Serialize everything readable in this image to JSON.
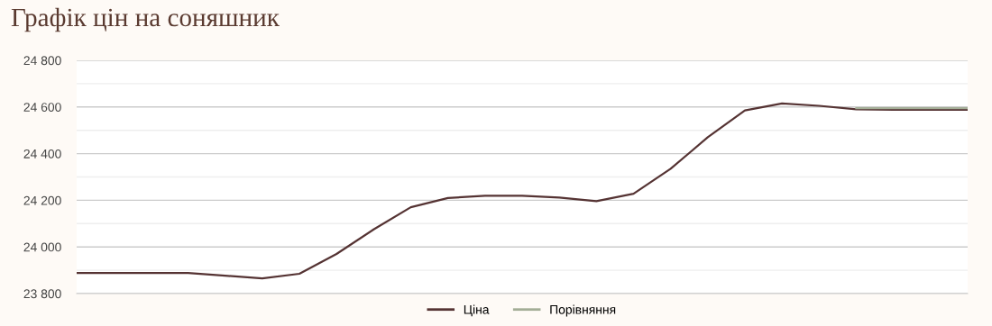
{
  "chart_data": {
    "type": "line",
    "title": "Графік цін на соняшник",
    "categories": [
      null,
      null,
      null,
      null,
      null,
      null,
      null,
      null,
      null,
      null,
      null,
      null,
      null,
      null,
      null,
      null,
      null,
      null,
      null,
      null,
      null,
      null,
      null,
      null,
      null
    ],
    "series": [
      {
        "name": "Ціна",
        "color": "#553333",
        "values": [
          23888,
          23888,
          23888,
          23888,
          23877,
          23865,
          23885,
          23970,
          24075,
          24170,
          24210,
          24219,
          24219,
          24212,
          24196,
          24228,
          24335,
          24470,
          24585,
          24615,
          24605,
          24590,
          24588,
          24588,
          24588
        ]
      },
      {
        "name": "Порівняння",
        "color": "#a3ad96",
        "values": [
          null,
          null,
          null,
          null,
          null,
          null,
          null,
          null,
          null,
          null,
          null,
          null,
          null,
          null,
          null,
          null,
          null,
          null,
          null,
          null,
          null,
          24595,
          24595,
          24595,
          24595
        ]
      }
    ],
    "ylim": [
      23800,
      24800
    ],
    "yticks": [
      {
        "value": 23800,
        "label": "23 800"
      },
      {
        "value": 23900,
        "label": null
      },
      {
        "value": 24000,
        "label": "24 000"
      },
      {
        "value": 24100,
        "label": null
      },
      {
        "value": 24200,
        "label": "24 200"
      },
      {
        "value": 24300,
        "label": null
      },
      {
        "value": 24400,
        "label": "24 400"
      },
      {
        "value": 24500,
        "label": null
      },
      {
        "value": 24600,
        "label": "24 600"
      },
      {
        "value": 24700,
        "label": null
      },
      {
        "value": 24800,
        "label": "24 800"
      }
    ],
    "grid": "y",
    "legend": "bottom",
    "tick_labels": "y",
    "marker": "none",
    "line_style": "solid"
  }
}
